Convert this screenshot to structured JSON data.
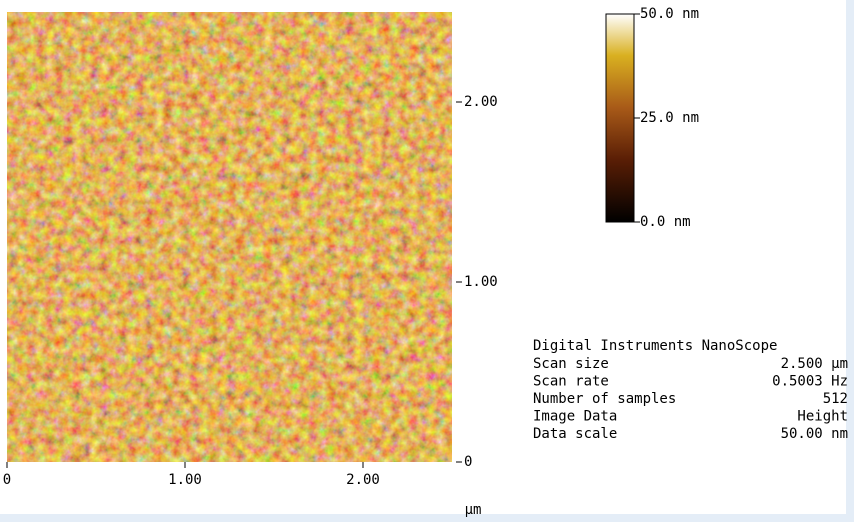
{
  "chart_data": {
    "type": "afm-image",
    "xlabel": "μm",
    "xlim": [
      0,
      2.5
    ],
    "ylim": [
      0,
      2.5
    ],
    "xticks": [
      {
        "value": 0,
        "label": "0"
      },
      {
        "value": 1,
        "label": "1.00"
      },
      {
        "value": 2,
        "label": "2.00"
      }
    ],
    "yticks": [
      {
        "value": 0,
        "label": "0"
      },
      {
        "value": 1,
        "label": "1.00"
      },
      {
        "value": 2,
        "label": "2.00"
      }
    ],
    "zlim": [
      0,
      50
    ],
    "zticks": [
      {
        "value": 0,
        "label": "0.0 nm"
      },
      {
        "value": 25,
        "label": "25.0 nm"
      },
      {
        "value": 50,
        "label": "50.0 nm"
      }
    ],
    "info_title": "Digital Instruments NanoScope",
    "info": [
      [
        "Scan size",
        "2.500 μm"
      ],
      [
        "Scan rate",
        "0.5003 Hz"
      ],
      [
        "Number of samples",
        "512"
      ],
      [
        "Image Data",
        "Height"
      ],
      [
        "Data scale",
        "50.00 nm"
      ]
    ]
  }
}
